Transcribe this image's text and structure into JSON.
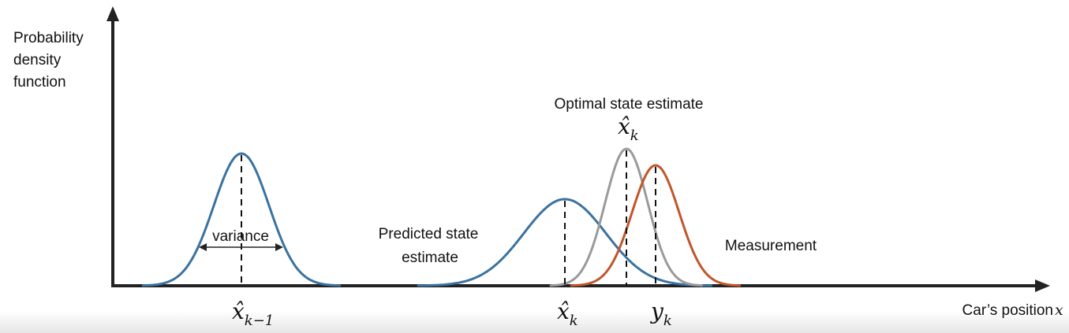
{
  "y_axis_label": [
    "Probability",
    "density",
    "function"
  ],
  "x_axis_label": {
    "text": "Car’s position",
    "variable": "x"
  },
  "curves": [
    {
      "name": "previous",
      "annotation": "variance",
      "symbol": {
        "base": "x̂",
        "subscript": "k−1"
      }
    },
    {
      "name": "predicted",
      "label": [
        "Predicted state",
        "estimate"
      ],
      "symbol": {
        "base": "x̂",
        "subscript": "k"
      }
    },
    {
      "name": "optimal",
      "label": [
        "Optimal state estimate"
      ],
      "symbol": {
        "base": "x̂",
        "subscript": "k"
      }
    },
    {
      "name": "measurement",
      "label": [
        "Measurement"
      ],
      "symbol": {
        "base": "y",
        "subscript": "k"
      }
    }
  ]
}
